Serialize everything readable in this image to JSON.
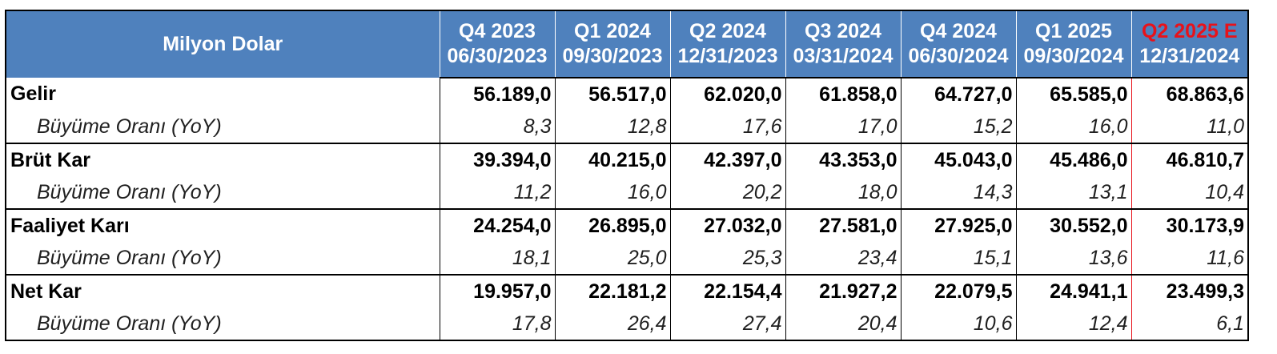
{
  "table": {
    "corner_label": "Milyon Dolar",
    "columns": [
      {
        "period": "Q4 2023",
        "date": "06/30/2023",
        "estimate": false
      },
      {
        "period": "Q1 2024",
        "date": "09/30/2023",
        "estimate": false
      },
      {
        "period": "Q2 2024",
        "date": "12/31/2023",
        "estimate": false
      },
      {
        "period": "Q3 2024",
        "date": "03/31/2024",
        "estimate": false
      },
      {
        "period": "Q4 2024",
        "date": "06/30/2024",
        "estimate": false
      },
      {
        "period": "Q1 2025",
        "date": "09/30/2024",
        "estimate": false
      },
      {
        "period": "Q2 2025 E",
        "date": "12/31/2024",
        "estimate": true
      }
    ],
    "rows": [
      {
        "label": "Gelir",
        "values": [
          "56.189,0",
          "56.517,0",
          "62.020,0",
          "61.858,0",
          "64.727,0",
          "65.585,0",
          "68.863,6"
        ],
        "growth_label": "Büyüme Oranı (YoY)",
        "growth": [
          "8,3",
          "12,8",
          "17,6",
          "17,0",
          "15,2",
          "16,0",
          "11,0"
        ]
      },
      {
        "label": "Brüt Kar",
        "values": [
          "39.394,0",
          "40.215,0",
          "42.397,0",
          "43.353,0",
          "45.043,0",
          "45.486,0",
          "46.810,7"
        ],
        "growth_label": "Büyüme Oranı (YoY)",
        "growth": [
          "11,2",
          "16,0",
          "20,2",
          "18,0",
          "14,3",
          "13,1",
          "10,4"
        ]
      },
      {
        "label": "Faaliyet Karı",
        "values": [
          "24.254,0",
          "26.895,0",
          "27.032,0",
          "27.581,0",
          "27.925,0",
          "30.552,0",
          "30.173,9"
        ],
        "growth_label": "Büyüme Oranı (YoY)",
        "growth": [
          "18,1",
          "25,0",
          "25,3",
          "23,4",
          "15,1",
          "13,6",
          "11,6"
        ]
      },
      {
        "label": "Net Kar",
        "values": [
          "19.957,0",
          "22.181,2",
          "22.154,4",
          "21.927,2",
          "22.079,5",
          "24.941,1",
          "23.499,3"
        ],
        "growth_label": "Büyüme Oranı (YoY)",
        "growth": [
          "17,8",
          "26,4",
          "27,4",
          "20,4",
          "10,6",
          "12,4",
          "6,1"
        ]
      }
    ]
  },
  "colors": {
    "header_bg": "#4f81bd",
    "header_text": "#ffffff",
    "estimate_text": "#e8121a",
    "grid": "#000000"
  }
}
